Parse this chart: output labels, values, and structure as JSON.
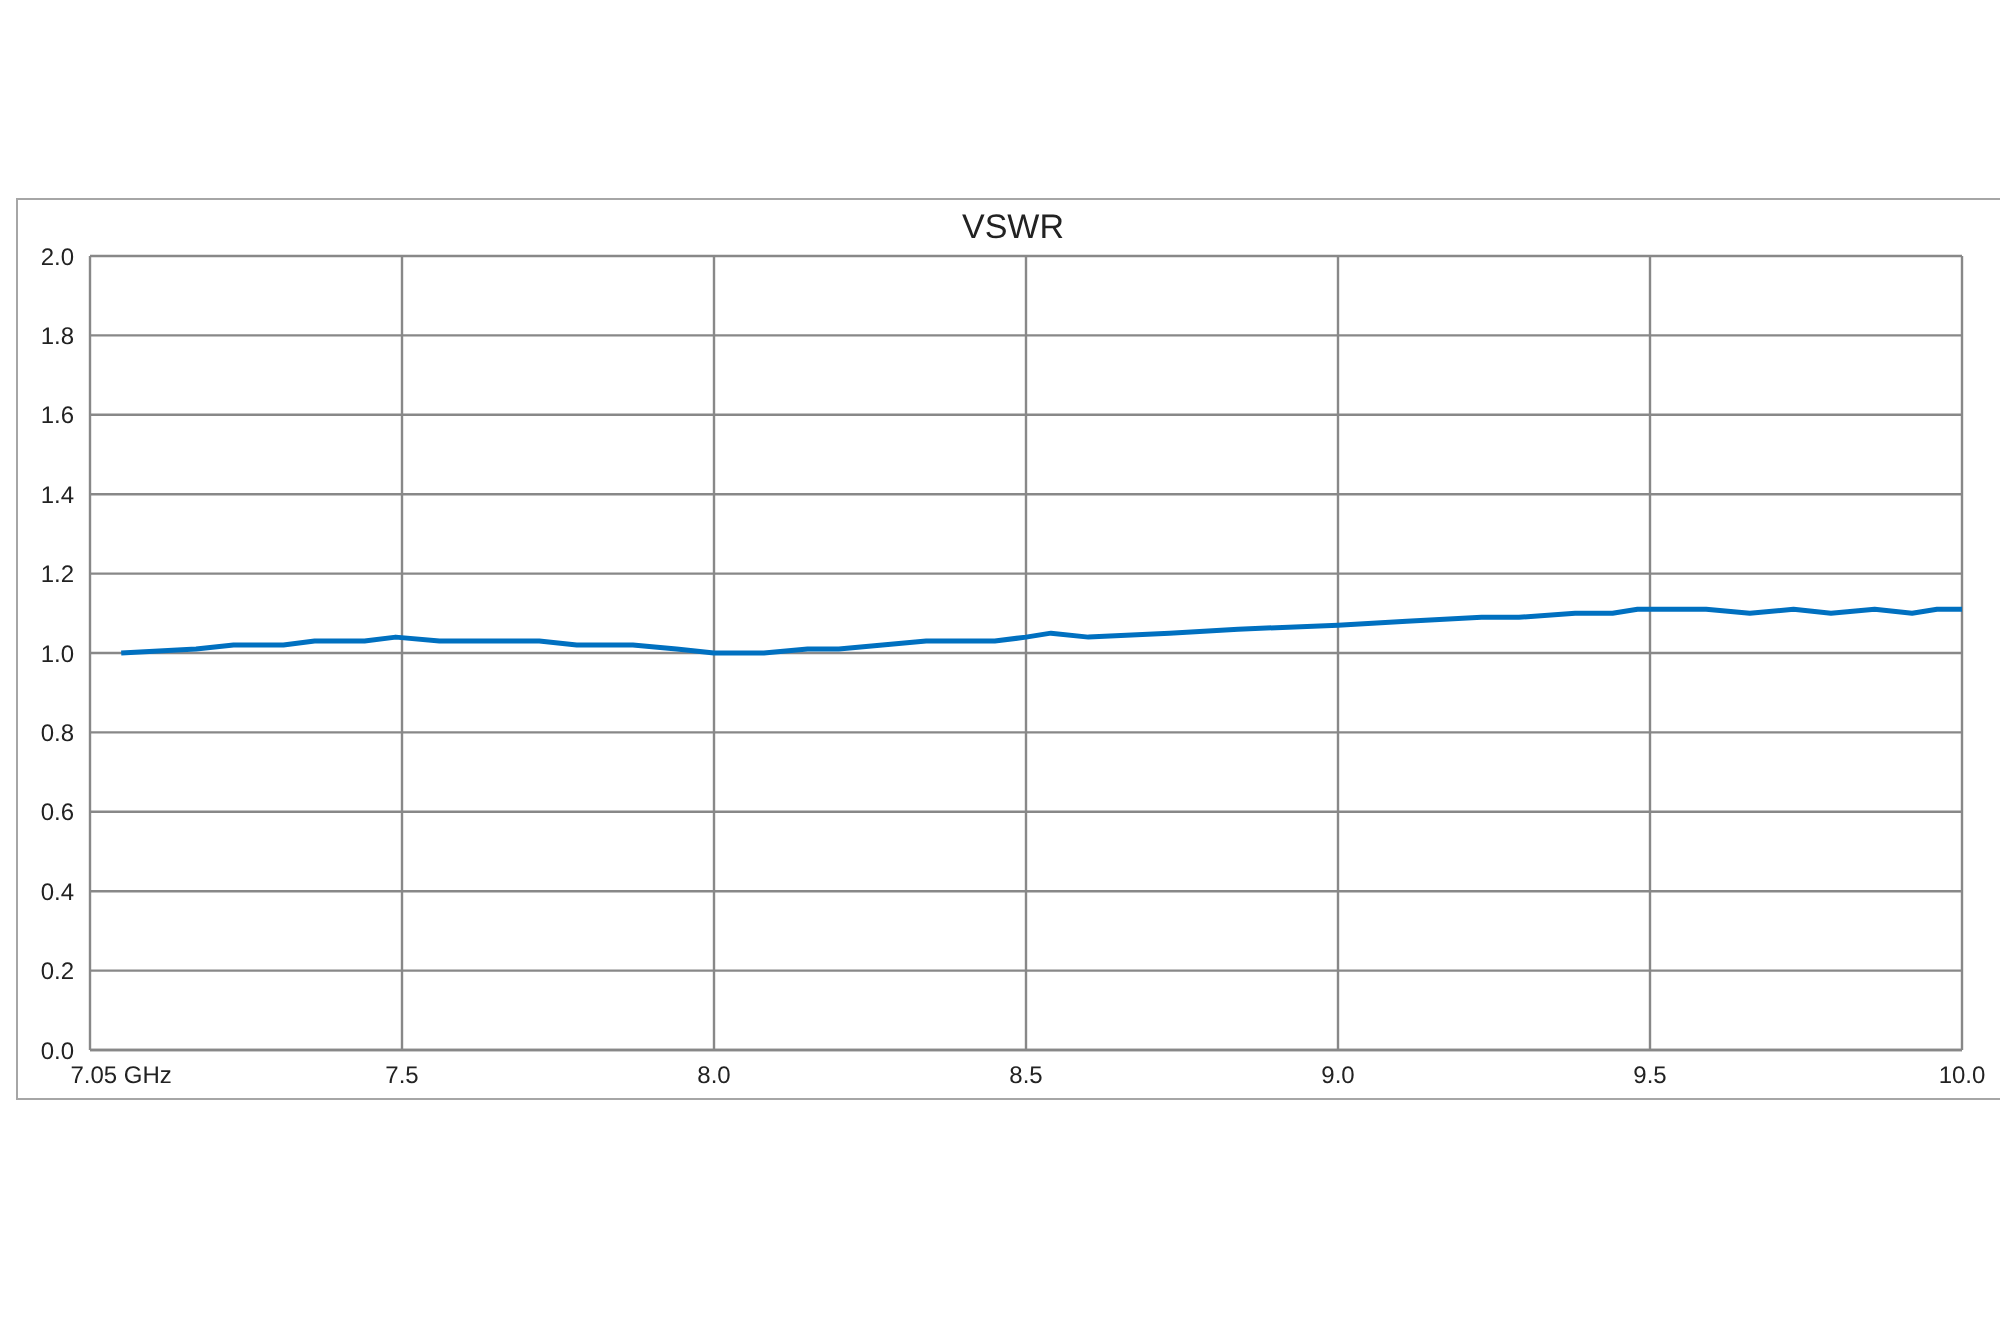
{
  "chart_data": {
    "type": "line",
    "title": "VSWR",
    "x": [
      7.05,
      7.17,
      7.23,
      7.31,
      7.36,
      7.44,
      7.49,
      7.56,
      7.61,
      7.66,
      7.72,
      7.78,
      7.87,
      7.94,
      8.0,
      8.08,
      8.15,
      8.2,
      8.27,
      8.34,
      8.38,
      8.45,
      8.5,
      8.54,
      8.6,
      8.73,
      8.84,
      9.0,
      9.11,
      9.23,
      9.29,
      9.38,
      9.44,
      9.48,
      9.54,
      9.59,
      9.66,
      9.73,
      9.79,
      9.86,
      9.92,
      9.96,
      10.0
    ],
    "series": [
      {
        "color": "#0070c0",
        "values": [
          1.0,
          1.01,
          1.02,
          1.02,
          1.03,
          1.03,
          1.04,
          1.03,
          1.03,
          1.03,
          1.03,
          1.02,
          1.02,
          1.01,
          1.0,
          1.0,
          1.01,
          1.01,
          1.02,
          1.03,
          1.03,
          1.03,
          1.04,
          1.05,
          1.04,
          1.05,
          1.06,
          1.07,
          1.08,
          1.09,
          1.09,
          1.1,
          1.1,
          1.11,
          1.11,
          1.11,
          1.1,
          1.11,
          1.1,
          1.11,
          1.1,
          1.11,
          1.11
        ]
      }
    ],
    "xlim": [
      7.0,
      10.0
    ],
    "xticks": [
      {
        "value": 7.05,
        "label": "7.05 GHz"
      },
      7.5,
      {
        "value": 8.0,
        "label": "8.0"
      },
      8.5,
      {
        "value": 9.0,
        "label": "9.0"
      },
      9.5,
      {
        "value": 10.0,
        "label": "10.0"
      }
    ],
    "ylim": [
      0,
      2.0
    ],
    "yticks": [
      {
        "value": 0,
        "label": "0.0"
      },
      0.2,
      0.4,
      0.6,
      0.8,
      {
        "value": 1.0,
        "label": "1.0"
      },
      1.2,
      1.4,
      1.6,
      1.8,
      {
        "value": 2.0,
        "label": "2.0"
      }
    ],
    "grid": true,
    "legend": false,
    "marker": "none",
    "line_style": "solid"
  }
}
